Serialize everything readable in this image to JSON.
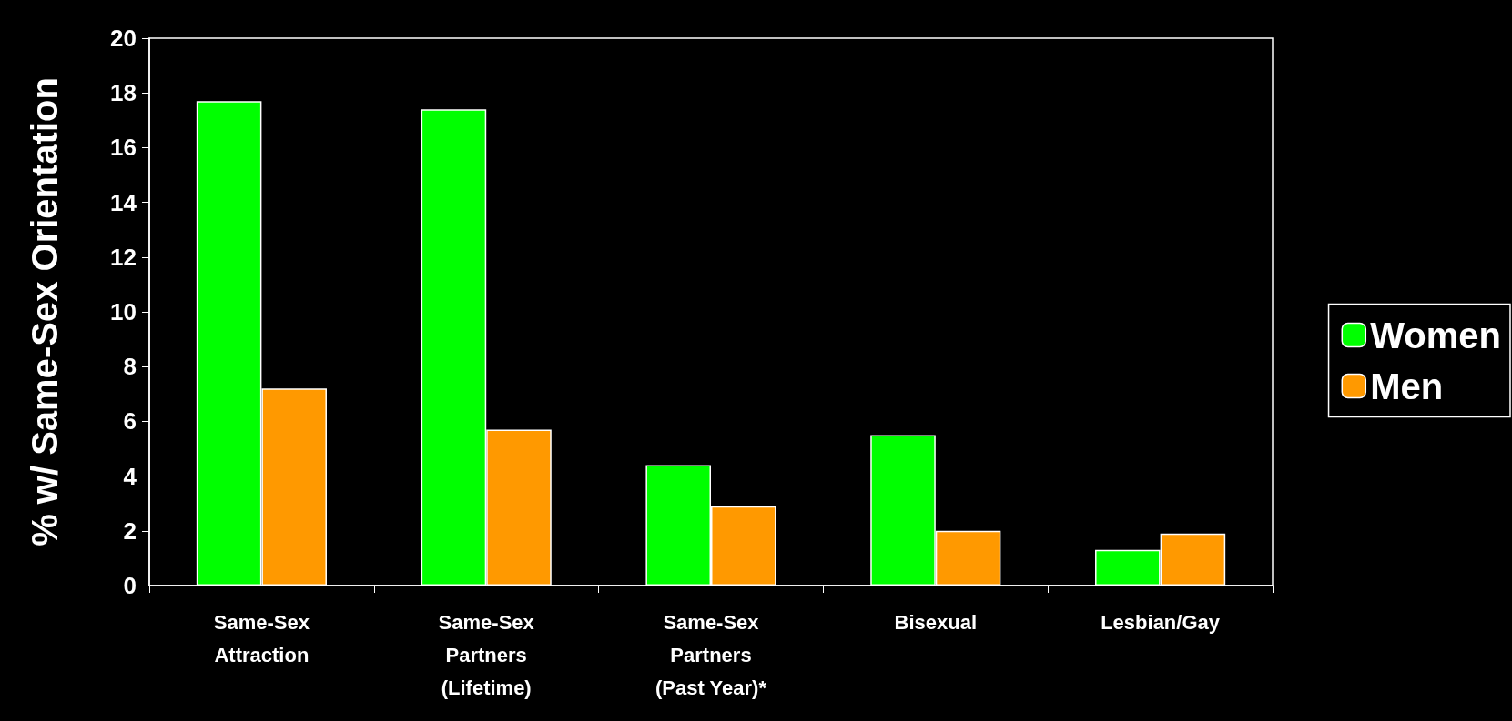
{
  "chart_data": {
    "type": "bar",
    "ylabel": "% w/ Same-Sex Orientation",
    "categories": [
      "Same-Sex\nAttraction",
      "Same-Sex\nPartners\n(Lifetime)",
      "Same-Sex\nPartners\n(Past Year)*",
      "Bisexual",
      "Lesbian/Gay"
    ],
    "series": [
      {
        "name": "Women",
        "color": "#00ff00",
        "values": [
          17.7,
          17.4,
          4.4,
          5.5,
          1.3
        ]
      },
      {
        "name": "Men",
        "color": "#ff9900",
        "values": [
          7.2,
          5.7,
          2.9,
          2.0,
          1.9
        ]
      }
    ],
    "ylim": [
      0,
      20
    ],
    "yticks": [
      0,
      2,
      4,
      6,
      8,
      10,
      12,
      14,
      16,
      18,
      20
    ],
    "grid": false,
    "legend": "right"
  }
}
